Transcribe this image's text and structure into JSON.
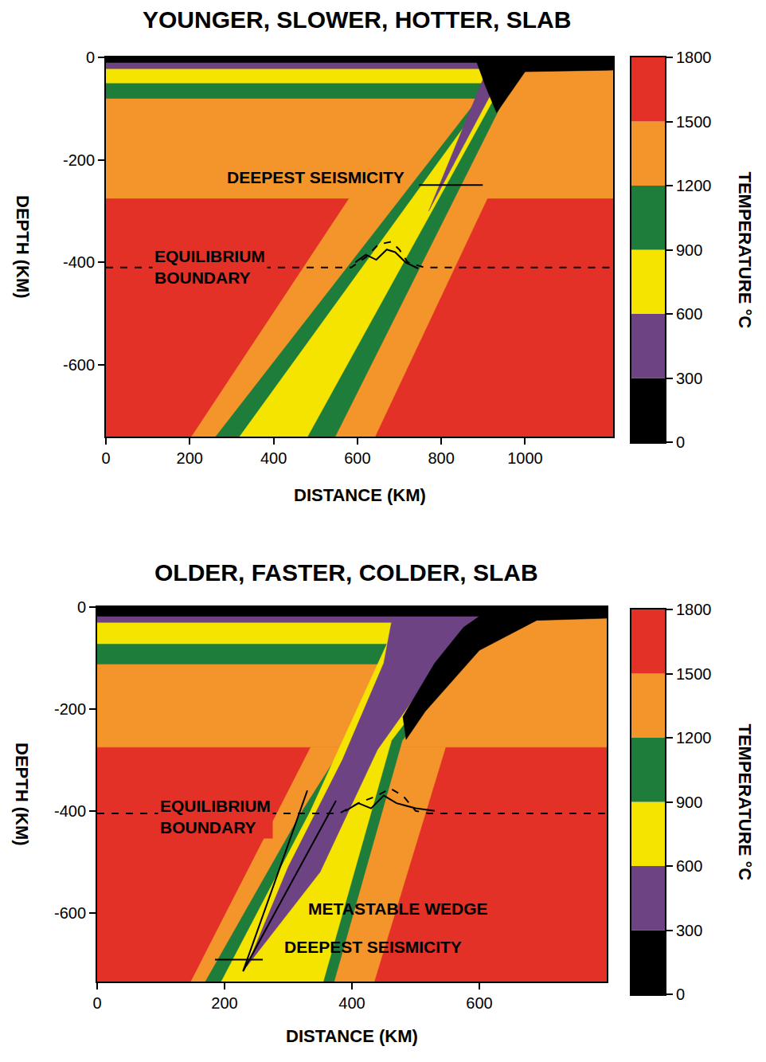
{
  "chart_data": [
    {
      "type": "filled_contour",
      "title": "YOUNGER, SLOWER, HOTTER, SLAB",
      "xlabel": "DISTANCE (KM)",
      "ylabel": "DEPTH (KM)",
      "xlim": [
        0,
        1210
      ],
      "ylim": [
        -740,
        0
      ],
      "xticks": [
        0,
        200,
        400,
        600,
        800,
        1000
      ],
      "yticks": [
        0,
        -200,
        -400,
        -600
      ],
      "colorbar": {
        "title": "TEMPERATURE °C",
        "range": [
          0,
          1800
        ],
        "ticks": [
          0,
          300,
          600,
          900,
          1200,
          1500,
          1800
        ],
        "bands": [
          {
            "range": [
              0,
              300
            ],
            "color": "#000000"
          },
          {
            "range": [
              300,
              600
            ],
            "color": "#6e4383"
          },
          {
            "range": [
              600,
              900
            ],
            "color": "#f5e400"
          },
          {
            "range": [
              900,
              1200
            ],
            "color": "#1f7d3c"
          },
          {
            "range": [
              1200,
              1500
            ],
            "color": "#f4952b"
          },
          {
            "range": [
              1500,
              1800
            ],
            "color": "#e33127"
          }
        ]
      },
      "regions": [
        {
          "temperature": [
            1500,
            1800
          ],
          "x": [
            0,
            1210,
            1210,
            0
          ],
          "y": [
            0,
            0,
            -740,
            -740
          ]
        },
        {
          "temperature": [
            1200,
            1500
          ],
          "x": [
            0,
            1210,
            1210,
            0
          ],
          "y": [
            0,
            0,
            -275,
            -275
          ]
        },
        {
          "temperature": [
            1200,
            1500
          ],
          "x": [
            204,
            642,
            910,
            580
          ],
          "y": [
            -740,
            -740,
            -275,
            -275
          ]
        },
        {
          "temperature": [
            900,
            1200
          ],
          "x": [
            0,
            1000,
            547,
            262,
            889,
            0
          ],
          "y": [
            0,
            0,
            -740,
            -740,
            -80,
            -80
          ]
        },
        {
          "temperature": [
            600,
            900
          ],
          "x": [
            0,
            980,
            481,
            319,
            930,
            0
          ],
          "y": [
            0,
            0,
            -740,
            -740,
            -50,
            -50
          ]
        },
        {
          "temperature": [
            300,
            600
          ],
          "x": [
            0,
            965,
            770,
            910,
            0
          ],
          "y": [
            0,
            0,
            -300,
            -22,
            -22
          ]
        },
        {
          "temperature": [
            0,
            300
          ],
          "x": [
            0,
            1210,
            1210,
            1000,
            932,
            905,
            885,
            0
          ],
          "y": [
            0,
            0,
            -25,
            -28,
            -108,
            -55,
            -10,
            -10
          ]
        }
      ],
      "lines": [
        {
          "label": "EQUILIBRIUM BOUNDARY",
          "line_style": "dashed",
          "x": [
            0,
            585,
            620,
            650,
            680,
            700,
            720,
            760,
            1210
          ],
          "y": [
            -410,
            -410,
            -390,
            -365,
            -360,
            -375,
            -400,
            -410,
            -410
          ]
        },
        {
          "line_style": "solid",
          "x": [
            595,
            620,
            645,
            670,
            690,
            715,
            745
          ],
          "y": [
            -400,
            -385,
            -395,
            -375,
            -380,
            -400,
            -412
          ]
        },
        {
          "label": "DEEPEST SEISMICITY",
          "line_style": "solid",
          "x": [
            747,
            899
          ],
          "y": [
            -249,
            -249
          ]
        }
      ]
    },
    {
      "type": "filled_contour",
      "title": "OLDER, FASTER, COLDER, SLAB",
      "xlabel": "DISTANCE (KM)",
      "ylabel": "DEPTH (KM)",
      "xlim": [
        0,
        800
      ],
      "ylim": [
        -735,
        0
      ],
      "xticks": [
        0,
        200,
        400,
        600
      ],
      "yticks": [
        0,
        -200,
        -400,
        -600
      ],
      "colorbar": {
        "title": "TEMPERATURE °C",
        "range": [
          0,
          1800
        ],
        "ticks": [
          0,
          300,
          600,
          900,
          1200,
          1500,
          1800
        ],
        "bands": [
          {
            "range": [
              0,
              300
            ],
            "color": "#000000"
          },
          {
            "range": [
              300,
              600
            ],
            "color": "#6e4383"
          },
          {
            "range": [
              600,
              900
            ],
            "color": "#f5e400"
          },
          {
            "range": [
              900,
              1200
            ],
            "color": "#1f7d3c"
          },
          {
            "range": [
              1200,
              1500
            ],
            "color": "#f4952b"
          },
          {
            "range": [
              1500,
              1800
            ],
            "color": "#e33127"
          }
        ]
      },
      "regions": [
        {
          "temperature": [
            1500,
            1800
          ],
          "x": [
            0,
            800,
            800,
            0
          ],
          "y": [
            0,
            0,
            -735,
            -735
          ]
        },
        {
          "temperature": [
            1200,
            1500
          ],
          "x": [
            0,
            800,
            800,
            0
          ],
          "y": [
            0,
            0,
            -275,
            -275
          ]
        },
        {
          "temperature": [
            1200,
            1500
          ],
          "x": [
            147,
            435,
            547,
            335
          ],
          "y": [
            -735,
            -735,
            -275,
            -275
          ]
        },
        {
          "temperature": [
            900,
            1200
          ],
          "x": [
            0,
            680,
            600,
            479,
            372,
            170,
            322,
            468,
            0
          ],
          "y": [
            0,
            0,
            -60,
            -262,
            -735,
            -735,
            -400,
            -112,
            -112
          ]
        },
        {
          "temperature": [
            600,
            900
          ],
          "x": [
            0,
            660,
            585,
            462,
            355,
            195,
            335,
            455,
            0
          ],
          "y": [
            0,
            0,
            -60,
            -262,
            -735,
            -735,
            -400,
            -72,
            -72
          ]
        },
        {
          "temperature": [
            300,
            600
          ],
          "x": [
            0,
            640,
            565,
            440,
            350,
            235,
            300,
            385,
            450,
            462,
            0
          ],
          "y": [
            0,
            0,
            -60,
            -280,
            -520,
            -705,
            -510,
            -300,
            -110,
            -30,
            -30
          ]
        },
        {
          "temperature": [
            0,
            300
          ],
          "x": [
            0,
            800,
            800,
            690,
            600,
            515,
            485,
            480,
            530,
            575,
            600,
            0
          ],
          "y": [
            0,
            0,
            -22,
            -26,
            -85,
            -205,
            -260,
            -215,
            -110,
            -40,
            -18,
            -18
          ]
        }
      ],
      "lines": [
        {
          "label": "EQUILIBRIUM BOUNDARY",
          "line_style": "dashed",
          "x": [
            0,
            380,
            410,
            440,
            460,
            480,
            500,
            520,
            800
          ],
          "y": [
            -405,
            -405,
            -385,
            -370,
            -356,
            -370,
            -400,
            -405,
            -405
          ]
        },
        {
          "line_style": "solid",
          "x": [
            390,
            410,
            430,
            450,
            470,
            500,
            530
          ],
          "y": [
            -400,
            -385,
            -395,
            -370,
            -385,
            -395,
            -400
          ]
        },
        {
          "label": "METASTABLE WEDGE",
          "line_style": "solid",
          "x": [
            330,
            229,
            375
          ],
          "y": [
            -360,
            -715,
            -380
          ]
        },
        {
          "label": "DEEPEST SEISMICITY",
          "line_style": "solid",
          "x": [
            185,
            260
          ],
          "y": [
            -692,
            -692
          ]
        }
      ]
    }
  ]
}
